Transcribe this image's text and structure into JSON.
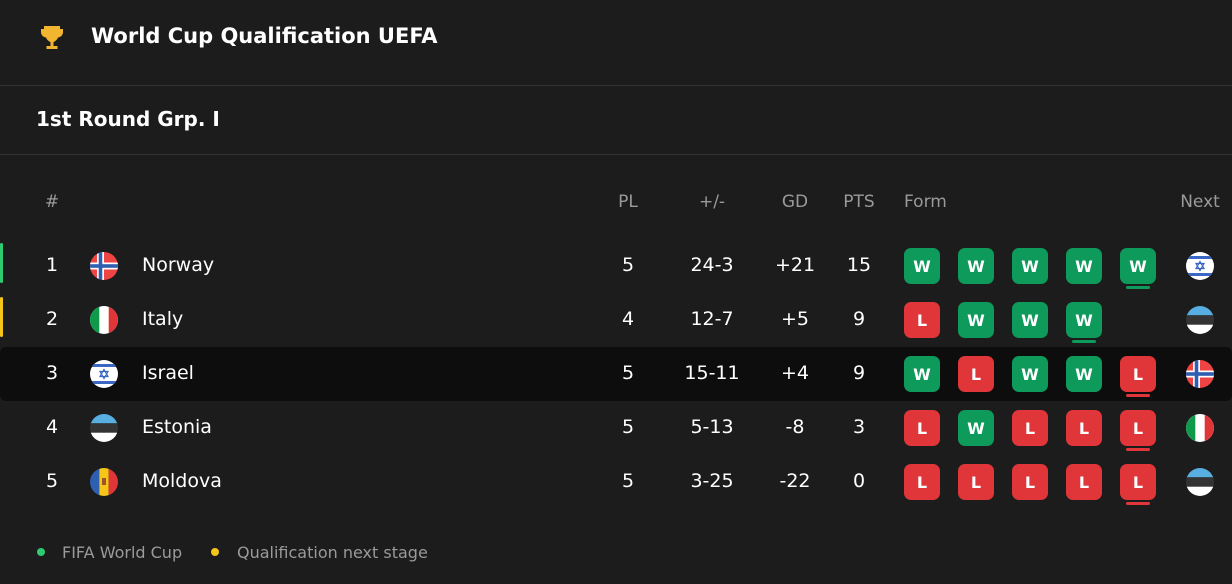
{
  "header": {
    "title": "World Cup Qualification UEFA",
    "icon": "trophy-icon"
  },
  "group": {
    "title": "1st Round Grp. I"
  },
  "columns": {
    "rank": "#",
    "pl": "PL",
    "goals": "+/-",
    "gd": "GD",
    "pts": "PTS",
    "form": "Form",
    "next": "Next"
  },
  "colors": {
    "win": "#0e9a5b",
    "loss": "#e0363a",
    "qualify": "#2ecc71",
    "next_stage": "#f5c518"
  },
  "rows": [
    {
      "rank": "1",
      "team": "Norway",
      "flag": "norway",
      "pl": "5",
      "goals": "24-3",
      "gd": "+21",
      "pts": "15",
      "form": [
        "W",
        "W",
        "W",
        "W",
        "W"
      ],
      "next": "israel",
      "indicator": "qualify"
    },
    {
      "rank": "2",
      "team": "Italy",
      "flag": "italy",
      "pl": "4",
      "goals": "12-7",
      "gd": "+5",
      "pts": "9",
      "form": [
        "L",
        "W",
        "W",
        "W"
      ],
      "next": "estonia",
      "indicator": "next_stage"
    },
    {
      "rank": "3",
      "team": "Israel",
      "flag": "israel",
      "pl": "5",
      "goals": "15-11",
      "gd": "+4",
      "pts": "9",
      "form": [
        "W",
        "L",
        "W",
        "W",
        "L"
      ],
      "next": "norway",
      "highlight": true
    },
    {
      "rank": "4",
      "team": "Estonia",
      "flag": "estonia",
      "pl": "5",
      "goals": "5-13",
      "gd": "-8",
      "pts": "3",
      "form": [
        "L",
        "W",
        "L",
        "L",
        "L"
      ],
      "next": "italy"
    },
    {
      "rank": "5",
      "team": "Moldova",
      "flag": "moldova",
      "pl": "5",
      "goals": "3-25",
      "gd": "-22",
      "pts": "0",
      "form": [
        "L",
        "L",
        "L",
        "L",
        "L"
      ],
      "next": "estonia"
    }
  ],
  "legend": [
    {
      "label": "FIFA World Cup",
      "color": "#2ecc71"
    },
    {
      "label": "Qualification next stage",
      "color": "#f5c518"
    }
  ]
}
